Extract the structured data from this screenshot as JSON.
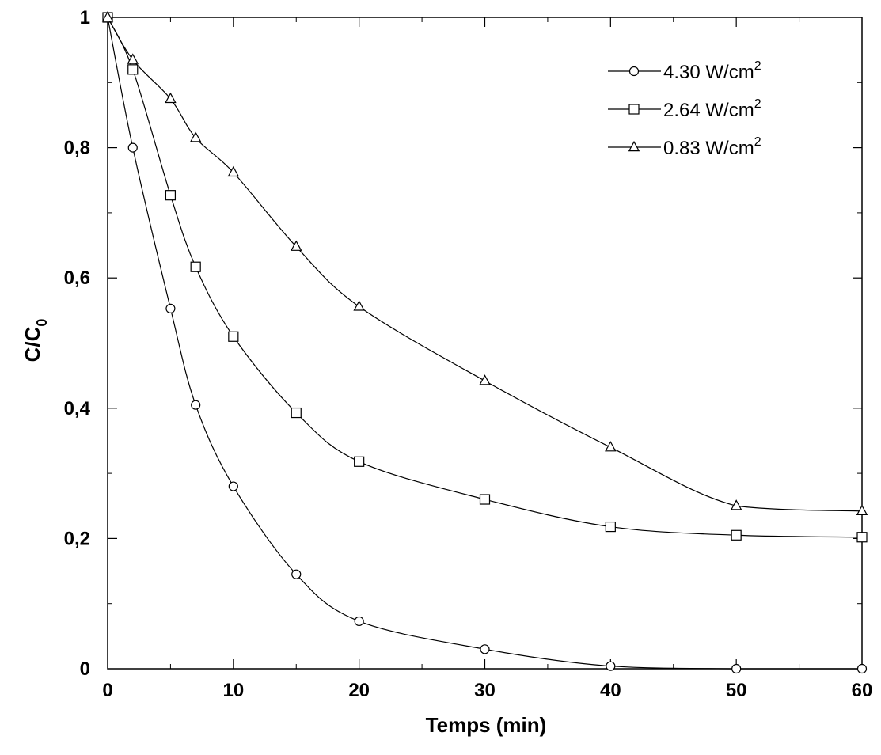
{
  "chart_data": {
    "type": "line",
    "title": "",
    "xlabel": "Temps (min)",
    "ylabel": {
      "main": "C/C",
      "sub": "0"
    },
    "xlim": [
      0,
      60
    ],
    "ylim": [
      0,
      1
    ],
    "x_ticks": [
      0,
      10,
      20,
      30,
      40,
      50,
      60
    ],
    "x_tick_labels": [
      "0",
      "10",
      "20",
      "30",
      "40",
      "50",
      "60"
    ],
    "y_ticks": [
      0,
      0.2,
      0.4,
      0.6,
      0.8,
      1
    ],
    "y_tick_labels": [
      "0",
      "0,2",
      "0,4",
      "0,6",
      "0,8",
      "1"
    ],
    "grid": false,
    "legend_position": "top-right",
    "series": [
      {
        "name": "4.30 W/cm",
        "name_sup": "2",
        "marker": "circle",
        "x": [
          0,
          2,
          5,
          7,
          10,
          15,
          20,
          30,
          40,
          50,
          60
        ],
        "y": [
          1.0,
          0.8,
          0.553,
          0.405,
          0.28,
          0.145,
          0.073,
          0.03,
          0.004,
          0.0,
          0.0
        ]
      },
      {
        "name": "2.64  W/cm",
        "name_sup": "2",
        "marker": "square",
        "x": [
          0,
          2,
          5,
          7,
          10,
          15,
          20,
          30,
          40,
          50,
          60
        ],
        "y": [
          1.0,
          0.92,
          0.727,
          0.617,
          0.51,
          0.393,
          0.318,
          0.26,
          0.218,
          0.205,
          0.202
        ]
      },
      {
        "name": "0.83 W/cm",
        "name_sup": "2",
        "marker": "triangle",
        "x": [
          0,
          2,
          5,
          7,
          10,
          15,
          20,
          30,
          40,
          50,
          60
        ],
        "y": [
          1.0,
          0.935,
          0.875,
          0.815,
          0.762,
          0.648,
          0.556,
          0.442,
          0.34,
          0.25,
          0.242
        ]
      }
    ]
  }
}
